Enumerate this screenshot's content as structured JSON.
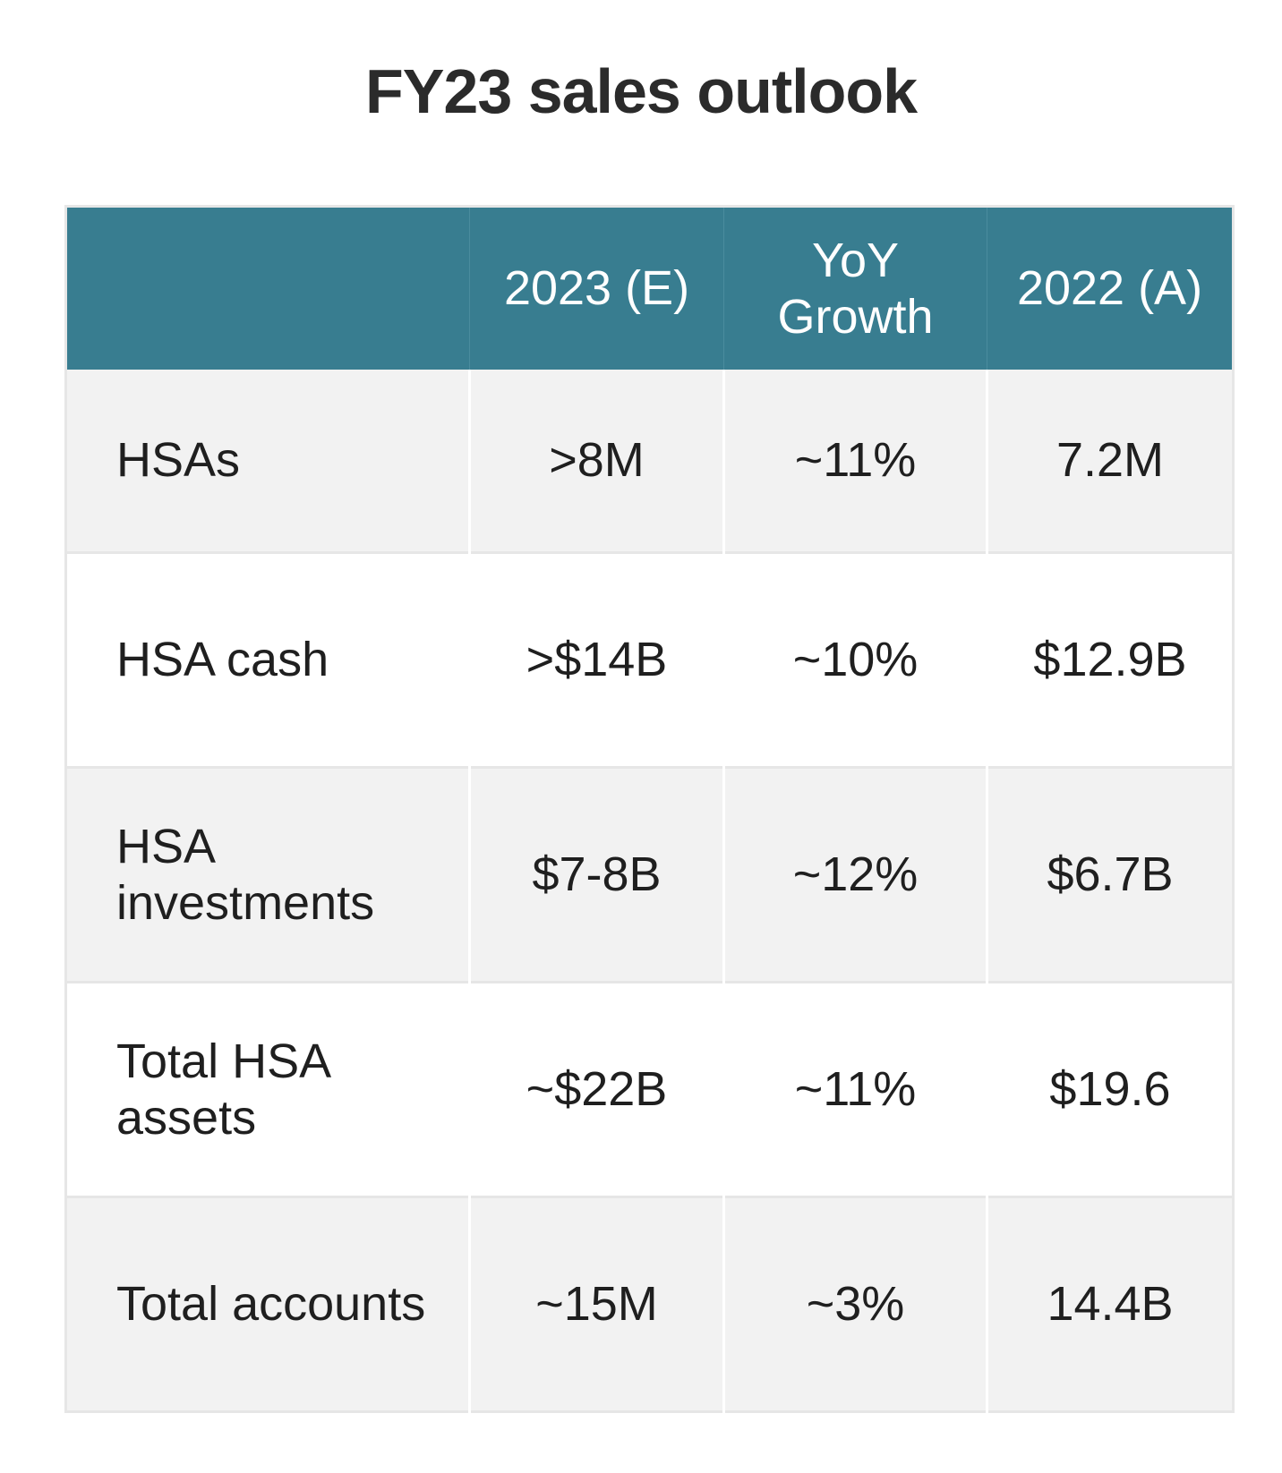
{
  "title": "FY23 sales outlook",
  "columns": [
    "",
    "2023 (E)",
    "YoY Growth",
    "2022 (A)"
  ],
  "rows": [
    [
      "HSAs",
      ">8M",
      "~11%",
      "7.2M"
    ],
    [
      "HSA cash",
      ">$14B",
      "~10%",
      "$12.9B"
    ],
    [
      "HSA investments",
      "$7-8B",
      "~12%",
      "$6.7B"
    ],
    [
      "Total HSA assets",
      "~$22B",
      "~11%",
      "$19.6"
    ],
    [
      "Total accounts",
      "~15M",
      "~3%",
      "14.4B"
    ]
  ],
  "colors": {
    "header_bg": "#387d90",
    "header_text": "#ffffff",
    "shaded_row": "#f2f2f2",
    "plain_row": "#ffffff",
    "border": "#e6e6e6"
  },
  "chart_data": {
    "type": "table",
    "title": "FY23 sales outlook",
    "columns": [
      "",
      "2023 (E)",
      "YoY Growth",
      "2022 (A)"
    ],
    "rows": [
      [
        "HSAs",
        ">8M",
        "~11%",
        "7.2M"
      ],
      [
        "HSA cash",
        ">$14B",
        "~10%",
        "$12.9B"
      ],
      [
        "HSA investments",
        "$7-8B",
        "~12%",
        "$6.7B"
      ],
      [
        "Total HSA assets",
        "~$22B",
        "~11%",
        "$19.6"
      ],
      [
        "Total accounts",
        "~15M",
        "~3%",
        "14.4B"
      ]
    ]
  }
}
